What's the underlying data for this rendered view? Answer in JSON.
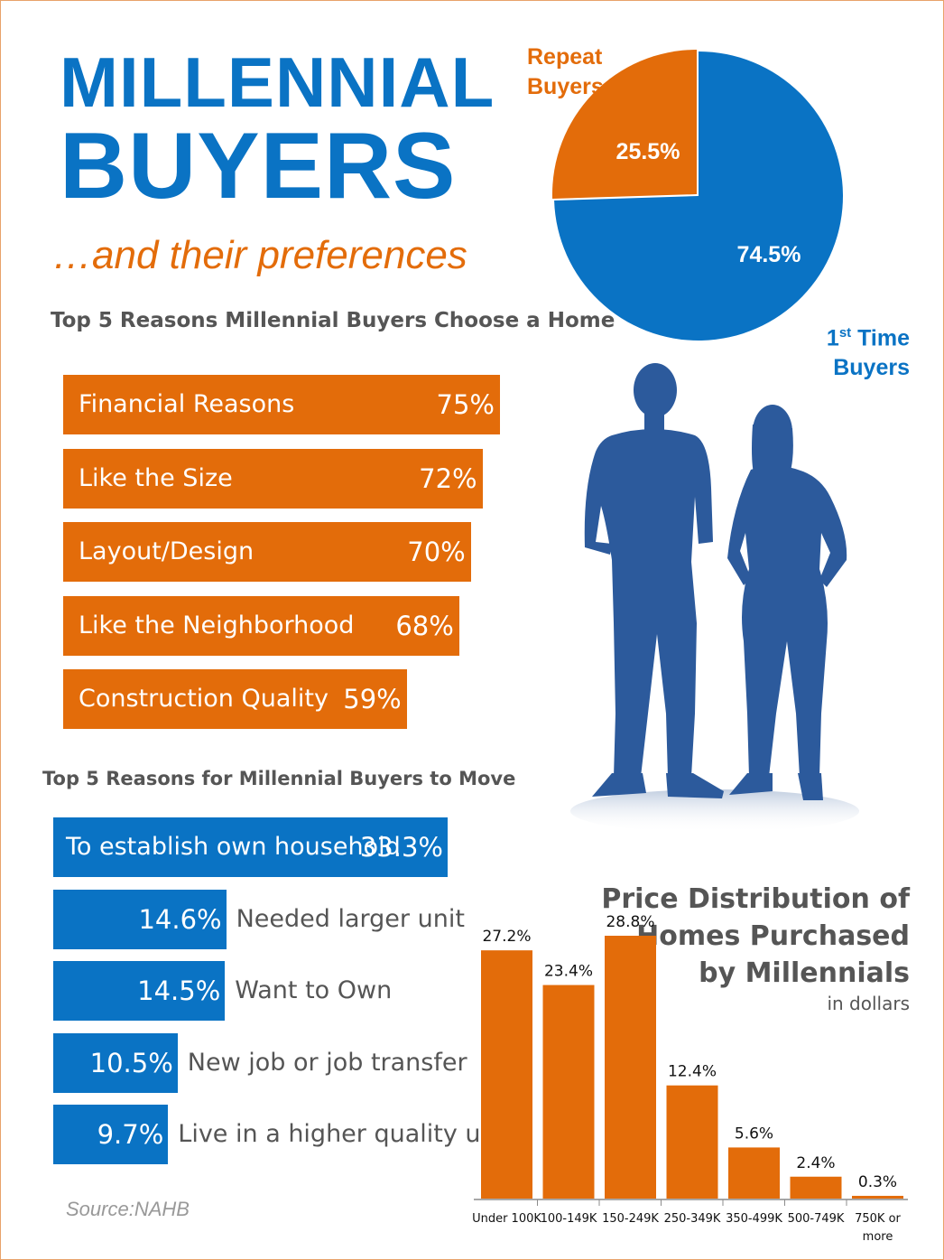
{
  "header": {
    "title_line1": "MILLENNIAL",
    "title_line2": "BUYERS",
    "subtitle": "…and their preferences"
  },
  "colors": {
    "orange": "#e36c0a",
    "blue": "#0a73c4",
    "gray": "#555555",
    "silhouette": "#2c5a9c"
  },
  "icons": {
    "silhouette": "couple-silhouette-icon"
  },
  "pie": {
    "repeat_label_line1": "Repeat",
    "repeat_label_line2": "Buyers",
    "first_label_num": "1",
    "first_label_sup": "st",
    "first_label_rest": " Time",
    "first_label_line2": "Buyers"
  },
  "choose": {
    "heading": "Top 5 Reasons Millennial Buyers Choose a Home"
  },
  "move": {
    "heading": "Top 5 Reasons for Millennial Buyers to Move"
  },
  "price": {
    "title_line1": "Price Distribution of",
    "title_line2": "Homes Purchased",
    "title_line3": "by Millennials",
    "subtitle": "in dollars"
  },
  "source": "Source:NAHB",
  "chart_data": [
    {
      "type": "pie",
      "slices": [
        {
          "name": "Repeat Buyers",
          "value": 25.5,
          "label": "25.5%"
        },
        {
          "name": "1st Time Buyers",
          "value": 74.5,
          "label": "74.5%"
        }
      ]
    },
    {
      "type": "bar",
      "orientation": "horizontal",
      "title": "Top 5 Reasons Millennial Buyers Choose a Home",
      "categories": [
        "Financial Reasons",
        "Like the Size",
        "Layout/Design",
        "Like the Neighborhood",
        "Construction Quality"
      ],
      "values": [
        75,
        72,
        70,
        68,
        59
      ],
      "labels": [
        "75%",
        "72%",
        "70%",
        "68%",
        "59%"
      ]
    },
    {
      "type": "bar",
      "orientation": "horizontal",
      "title": "Top 5 Reasons for Millennial Buyers to Move",
      "categories": [
        "To establish own household",
        "Needed larger unit",
        "Want to Own",
        "New job or job transfer",
        "Live in a higher quality unit"
      ],
      "values": [
        33.3,
        14.6,
        14.5,
        10.5,
        9.7
      ],
      "labels": [
        "33.3%",
        "14.6%",
        "14.5%",
        "10.5%",
        "9.7%"
      ]
    },
    {
      "type": "bar",
      "title": "Price Distribution of Homes Purchased by Millennials",
      "categories": [
        "Under 100K",
        "100-149K",
        "150-249K",
        "250-349K",
        "350-499K",
        "500-749K",
        "750K or more"
      ],
      "category_lines": [
        [
          "Under 100K"
        ],
        [
          "100-149K"
        ],
        [
          "150-249K"
        ],
        [
          "250-349K"
        ],
        [
          "350-499K"
        ],
        [
          "500-749K"
        ],
        [
          "750K or",
          "more"
        ]
      ],
      "values": [
        27.2,
        23.4,
        28.8,
        12.4,
        5.6,
        2.4,
        0.3
      ],
      "labels": [
        "27.2%",
        "23.4%",
        "28.8%",
        "12.4%",
        "5.6%",
        "2.4%",
        "0.3%"
      ]
    }
  ]
}
